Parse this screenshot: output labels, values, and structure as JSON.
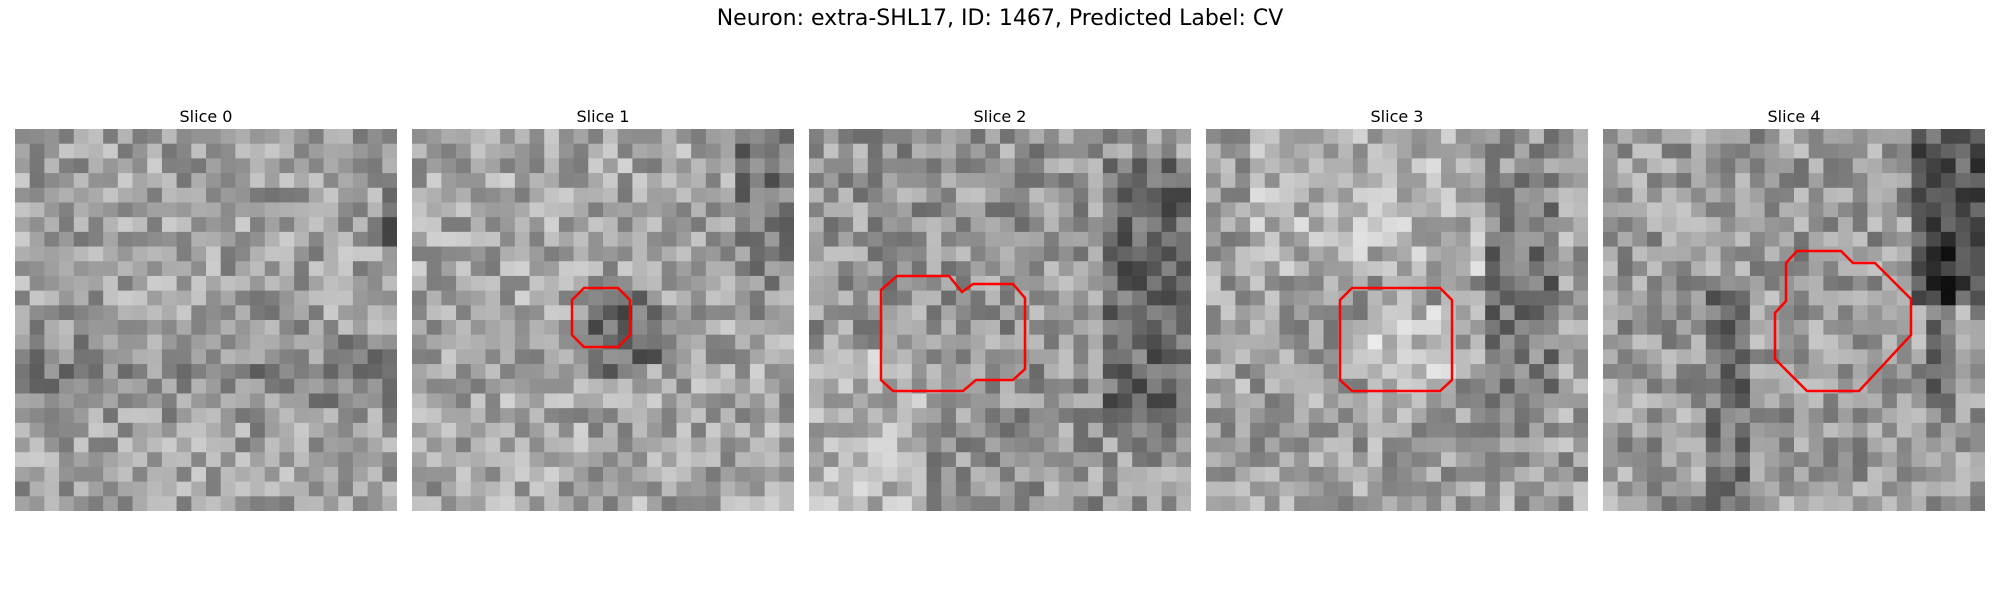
{
  "figure": {
    "suptitle": "Neuron: extra-SHL17, ID: 1467, Predicted Label: CV",
    "contour_color": "#ff0000"
  },
  "slices": [
    {
      "title": "Slice 0",
      "seed": 11,
      "has_contour": false,
      "style": "uniform"
    },
    {
      "title": "Slice 1",
      "seed": 23,
      "has_contour": true,
      "style": "dark-blob"
    },
    {
      "title": "Slice 2",
      "seed": 37,
      "has_contour": true,
      "style": "mixed"
    },
    {
      "title": "Slice 3",
      "seed": 53,
      "has_contour": true,
      "style": "light-blob"
    },
    {
      "title": "Slice 4",
      "seed": 71,
      "has_contour": true,
      "style": "ring"
    }
  ]
}
